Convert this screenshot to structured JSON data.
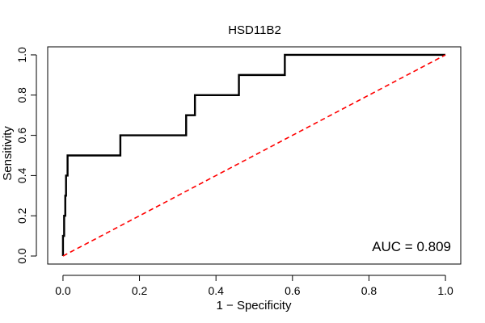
{
  "chart_data": {
    "type": "line",
    "title": "HSD11B2",
    "xlabel": "1 − Specificity",
    "ylabel": "Sensitivity",
    "xlim": [
      -0.04,
      1.04
    ],
    "ylim": [
      -0.04,
      1.04
    ],
    "xticks": [
      0.0,
      0.2,
      0.4,
      0.6,
      0.8,
      1.0
    ],
    "xtick_labels": [
      "0.0",
      "0.2",
      "0.4",
      "0.6",
      "0.8",
      "1.0"
    ],
    "yticks": [
      0.0,
      0.2,
      0.4,
      0.6,
      0.8,
      1.0
    ],
    "ytick_labels": [
      "0.0",
      "0.2",
      "0.4",
      "0.6",
      "0.8",
      "1.0"
    ],
    "grid": false,
    "annotation": "AUC = 0.809",
    "series": [
      {
        "style": "solid",
        "color": "#000000",
        "x": [
          0.0,
          0.0,
          0.003,
          0.003,
          0.006,
          0.006,
          0.008,
          0.008,
          0.012,
          0.012,
          0.018,
          0.018,
          0.15,
          0.15,
          0.322,
          0.322,
          0.345,
          0.345,
          0.46,
          0.46,
          0.58,
          0.58,
          1.0
        ],
        "y": [
          0.0,
          0.1,
          0.1,
          0.2,
          0.2,
          0.3,
          0.3,
          0.4,
          0.4,
          0.5,
          0.5,
          0.5,
          0.5,
          0.6,
          0.6,
          0.7,
          0.7,
          0.8,
          0.8,
          0.9,
          0.9,
          1.0,
          1.0
        ]
      },
      {
        "style": "dashed",
        "color": "#ff0000",
        "x": [
          0.0,
          1.0
        ],
        "y": [
          0.0,
          1.0
        ]
      }
    ]
  }
}
